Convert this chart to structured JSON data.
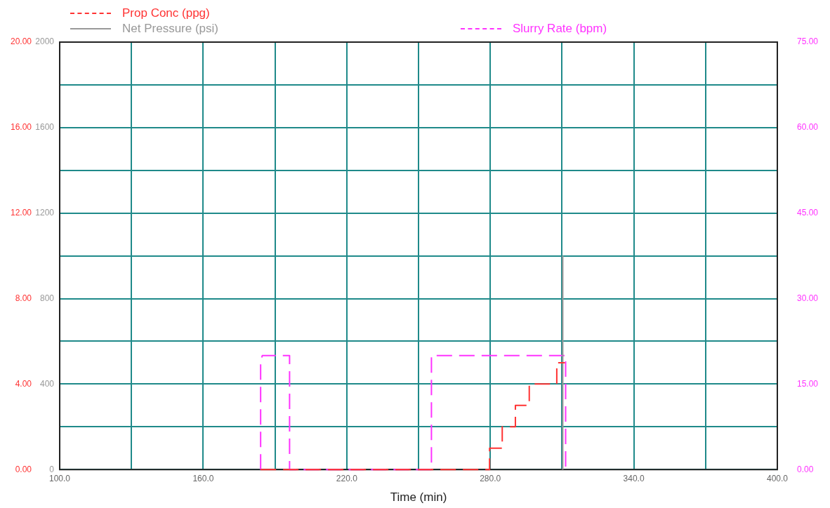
{
  "chart_data": {
    "type": "line",
    "xlabel": "Time (min)",
    "xlim": [
      100,
      400
    ],
    "xticks": [
      {
        "value": 100,
        "label": "100.0"
      },
      {
        "value": 130,
        "label": null
      },
      {
        "value": 160,
        "label": "160.0"
      },
      {
        "value": 190,
        "label": null
      },
      {
        "value": 220,
        "label": "220.0"
      },
      {
        "value": 250,
        "label": null
      },
      {
        "value": 280,
        "label": "280.0"
      },
      {
        "value": 310,
        "label": null
      },
      {
        "value": 340,
        "label": "340.0"
      },
      {
        "value": 370,
        "label": null
      },
      {
        "value": 400,
        "label": "400.0"
      }
    ],
    "ylim": [
      0,
      20
    ],
    "yticks": [
      {
        "value": 0,
        "label": "0.00"
      },
      {
        "value": 2,
        "label": null
      },
      {
        "value": 4,
        "label": "4.00"
      },
      {
        "value": 6,
        "label": null
      },
      {
        "value": 8,
        "label": "8.00"
      },
      {
        "value": 10,
        "label": null
      },
      {
        "value": 12,
        "label": "12.00"
      },
      {
        "value": 14,
        "label": null
      },
      {
        "value": 16,
        "label": "16.00"
      },
      {
        "value": 18,
        "label": null
      },
      {
        "value": 20,
        "label": "20.00"
      }
    ],
    "y2lim": [
      0,
      2000
    ],
    "y2ticks": [
      0,
      400,
      800,
      1200,
      1600,
      2000
    ],
    "y3lim": [
      0,
      75
    ],
    "y3ticks": [
      {
        "value": 0,
        "label": "0.00"
      },
      {
        "value": 15,
        "label": "15.00"
      },
      {
        "value": 30,
        "label": "30.00"
      },
      {
        "value": 45,
        "label": "45.00"
      },
      {
        "value": 60,
        "label": "60.00"
      },
      {
        "value": 75,
        "label": "75.00"
      }
    ],
    "grid": true,
    "legend": "top",
    "marker": "none",
    "series": [
      {
        "name": "Prop Conc (ppg)",
        "color": "#ff3333",
        "line_style": "dashed",
        "x": [
          184,
          279.7,
          279.7,
          285,
          285,
          290.5,
          290.5,
          296.3,
          296.3,
          307.8,
          307.8,
          311.2
        ],
        "values": [
          0,
          0,
          1,
          1,
          2,
          2,
          3,
          3,
          4,
          4,
          5,
          5
        ]
      },
      {
        "name": "Net Pressure (psi)",
        "color": "#999999",
        "line_style": "solid",
        "axis": "y2",
        "x": [
          310.3,
          310.3
        ],
        "values": [
          0,
          1000
        ]
      },
      {
        "name": "Slurry Rate (bpm)",
        "color": "#ff33ff",
        "line_style": "dashed",
        "axis": "y3",
        "x": [
          184,
          184,
          184.7,
          196.1,
          196.1,
          255.4,
          255.4,
          311.5,
          311.5
        ],
        "values": [
          0,
          19,
          20,
          20,
          0,
          0,
          20,
          20,
          0
        ]
      }
    ]
  }
}
